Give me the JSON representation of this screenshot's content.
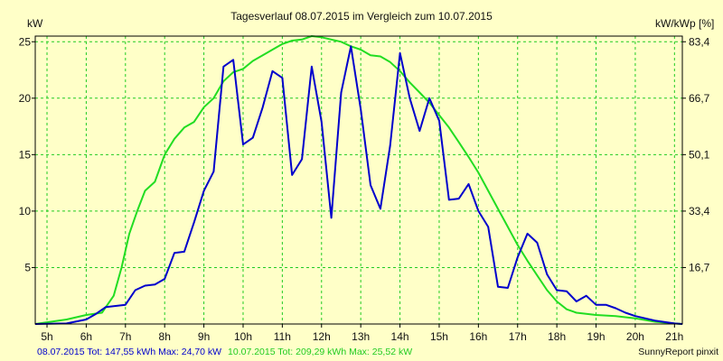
{
  "chart_data": {
    "type": "line",
    "title": "Tagesverlauf 08.07.2015 im Vergleich zum 10.07.2015",
    "ylabel_left": "kW",
    "ylabel_right": "kW/kWp [%]",
    "xlim": [
      4.7,
      21.2
    ],
    "ylim": [
      0,
      25.5
    ],
    "x_ticks": [
      {
        "x": 5,
        "label": "5h"
      },
      {
        "x": 6,
        "label": "6h"
      },
      {
        "x": 7,
        "label": "7h"
      },
      {
        "x": 8,
        "label": "8h"
      },
      {
        "x": 9,
        "label": "9h"
      },
      {
        "x": 10,
        "label": "10h"
      },
      {
        "x": 11,
        "label": "11h"
      },
      {
        "x": 12,
        "label": "12h"
      },
      {
        "x": 13,
        "label": "13h"
      },
      {
        "x": 14,
        "label": "14h"
      },
      {
        "x": 15,
        "label": "15h"
      },
      {
        "x": 16,
        "label": "16h"
      },
      {
        "x": 17,
        "label": "17h"
      },
      {
        "x": 18,
        "label": "18h"
      },
      {
        "x": 19,
        "label": "19h"
      },
      {
        "x": 20,
        "label": "20h"
      },
      {
        "x": 21,
        "label": "21h"
      }
    ],
    "y_ticks_left": [
      {
        "y": 5,
        "label": "5"
      },
      {
        "y": 10,
        "label": "10"
      },
      {
        "y": 15,
        "label": "15"
      },
      {
        "y": 20,
        "label": "20"
      },
      {
        "y": 25,
        "label": "25"
      }
    ],
    "y_ticks_right": [
      {
        "y": 5,
        "label": "16,7"
      },
      {
        "y": 10,
        "label": "33,4"
      },
      {
        "y": 15,
        "label": "50,1"
      },
      {
        "y": 20,
        "label": "66,7"
      },
      {
        "y": 25,
        "label": "83,4"
      }
    ],
    "grid": true,
    "series": [
      {
        "name": "08.07.2015",
        "color": "#0000cc",
        "x": [
          4.7,
          5.5,
          6.0,
          6.25,
          6.5,
          6.75,
          7.0,
          7.25,
          7.5,
          7.75,
          8.0,
          8.25,
          8.5,
          8.75,
          9.0,
          9.25,
          9.5,
          9.75,
          10.0,
          10.25,
          10.5,
          10.75,
          11.0,
          11.25,
          11.5,
          11.75,
          12.0,
          12.25,
          12.5,
          12.75,
          13.0,
          13.25,
          13.5,
          13.75,
          14.0,
          14.25,
          14.5,
          14.75,
          15.0,
          15.25,
          15.5,
          15.75,
          16.0,
          16.25,
          16.5,
          16.75,
          17.0,
          17.25,
          17.5,
          17.75,
          18.0,
          18.25,
          18.5,
          18.75,
          19.0,
          19.25,
          19.5,
          19.75,
          20.0,
          20.5,
          21.0,
          21.2
        ],
        "y": [
          0.0,
          0.05,
          0.4,
          0.9,
          1.5,
          1.6,
          1.7,
          3.0,
          3.4,
          3.5,
          4.0,
          6.3,
          6.4,
          9.0,
          11.8,
          13.5,
          22.8,
          23.4,
          15.9,
          16.5,
          19.2,
          22.4,
          21.8,
          13.2,
          14.6,
          22.8,
          17.9,
          9.4,
          20.5,
          24.6,
          19.0,
          12.3,
          10.2,
          15.8,
          24.0,
          20.0,
          17.1,
          20.0,
          18.0,
          11.0,
          11.1,
          12.4,
          10.0,
          8.6,
          3.3,
          3.2,
          5.9,
          8.0,
          7.2,
          4.4,
          3.0,
          2.9,
          2.0,
          2.5,
          1.7,
          1.7,
          1.4,
          1.0,
          0.7,
          0.3,
          0.05,
          0.0
        ]
      },
      {
        "name": "10.07.2015",
        "color": "#22dd22",
        "x": [
          4.7,
          5.5,
          6.0,
          6.4,
          6.7,
          6.9,
          7.1,
          7.3,
          7.5,
          7.75,
          8.0,
          8.25,
          8.5,
          8.75,
          9.0,
          9.25,
          9.5,
          9.75,
          10.0,
          10.25,
          10.5,
          10.75,
          11.0,
          11.25,
          11.5,
          11.75,
          12.0,
          12.25,
          12.5,
          12.75,
          13.0,
          13.25,
          13.5,
          13.75,
          14.0,
          14.25,
          14.5,
          14.75,
          15.0,
          15.25,
          15.5,
          15.75,
          16.0,
          16.25,
          16.5,
          16.75,
          17.0,
          17.25,
          17.5,
          17.75,
          18.0,
          18.25,
          18.5,
          18.75,
          19.0,
          19.5,
          20.0,
          20.5,
          21.0,
          21.2
        ],
        "y": [
          0.0,
          0.4,
          0.8,
          1.0,
          2.5,
          5.0,
          8.0,
          10.0,
          11.8,
          12.6,
          15.0,
          16.4,
          17.4,
          17.9,
          19.2,
          20.0,
          21.5,
          22.3,
          22.6,
          23.3,
          23.8,
          24.3,
          24.8,
          25.1,
          25.2,
          25.5,
          25.4,
          25.2,
          25.0,
          24.6,
          24.3,
          23.8,
          23.7,
          23.2,
          22.4,
          21.4,
          20.5,
          19.6,
          18.5,
          17.4,
          16.1,
          14.8,
          13.4,
          11.8,
          10.2,
          8.6,
          7.0,
          5.6,
          4.3,
          3.0,
          2.0,
          1.3,
          1.0,
          0.9,
          0.8,
          0.7,
          0.5,
          0.2,
          0.05,
          0.0
        ]
      }
    ],
    "footer": {
      "left_blue": "08.07.2015 Tot: 147,55 kWh Max: 24,70 kW",
      "left_green": "10.07.2015 Tot: 209,29 kWh Max: 25,52 kW",
      "right": "SunnyReport pinxit"
    }
  }
}
